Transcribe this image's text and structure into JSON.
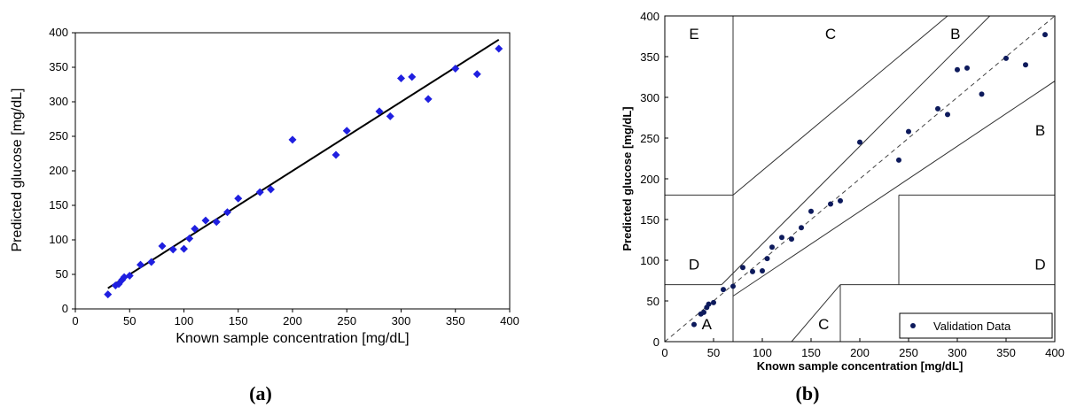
{
  "chart_data": [
    {
      "type": "scatter",
      "panel_label": "(a)",
      "xlabel": "Known sample concentration [mg/dL]",
      "ylabel": "Predicted glucose [mg/dL]",
      "xlim": [
        0,
        400
      ],
      "ylim": [
        0,
        400
      ],
      "xticks": [
        "0",
        "50",
        "100",
        "150",
        "200",
        "250",
        "300",
        "350",
        "400"
      ],
      "yticks": [
        "0",
        "50",
        "100",
        "150",
        "200",
        "250",
        "300",
        "350",
        "400"
      ],
      "marker": "diamond",
      "marker_color": "#1f1fe0",
      "fit_line": {
        "x": [
          30,
          390
        ],
        "y": [
          30,
          390
        ],
        "color": "#000000"
      },
      "points": [
        {
          "x": 30,
          "y": 21
        },
        {
          "x": 37,
          "y": 34
        },
        {
          "x": 40,
          "y": 36
        },
        {
          "x": 43,
          "y": 42
        },
        {
          "x": 45,
          "y": 46
        },
        {
          "x": 50,
          "y": 48
        },
        {
          "x": 60,
          "y": 64
        },
        {
          "x": 70,
          "y": 68
        },
        {
          "x": 80,
          "y": 91
        },
        {
          "x": 90,
          "y": 86
        },
        {
          "x": 100,
          "y": 87
        },
        {
          "x": 105,
          "y": 102
        },
        {
          "x": 110,
          "y": 116
        },
        {
          "x": 120,
          "y": 128
        },
        {
          "x": 130,
          "y": 126
        },
        {
          "x": 140,
          "y": 140
        },
        {
          "x": 150,
          "y": 160
        },
        {
          "x": 170,
          "y": 169
        },
        {
          "x": 180,
          "y": 173
        },
        {
          "x": 200,
          "y": 245
        },
        {
          "x": 240,
          "y": 223
        },
        {
          "x": 250,
          "y": 258
        },
        {
          "x": 280,
          "y": 286
        },
        {
          "x": 290,
          "y": 279
        },
        {
          "x": 300,
          "y": 334
        },
        {
          "x": 310,
          "y": 336
        },
        {
          "x": 325,
          "y": 304
        },
        {
          "x": 350,
          "y": 348
        },
        {
          "x": 370,
          "y": 340
        },
        {
          "x": 390,
          "y": 377
        }
      ]
    },
    {
      "type": "scatter",
      "panel_label": "(b)",
      "xlabel": "Known sample concentration [mg/dL]",
      "ylabel": "Predicted glucose [mg/dL]",
      "xlim": [
        0,
        400
      ],
      "ylim": [
        0,
        400
      ],
      "xticks": [
        "0",
        "50",
        "100",
        "150",
        "200",
        "250",
        "300",
        "350",
        "400"
      ],
      "yticks": [
        "0",
        "50",
        "100",
        "150",
        "200",
        "250",
        "300",
        "350",
        "400"
      ],
      "marker": "dot",
      "marker_color": "#0d1a5c",
      "legend": {
        "label": "Validation Data",
        "placement": "bottom-right"
      },
      "identity_line": {
        "x": [
          0,
          400
        ],
        "y": [
          0,
          400
        ],
        "style": "dashed"
      },
      "zones": [
        {
          "label": "A",
          "x": 43,
          "y": 22
        },
        {
          "label": "B",
          "x": 298,
          "y": 378
        },
        {
          "label": "B",
          "x": 385,
          "y": 260
        },
        {
          "label": "C",
          "x": 170,
          "y": 378
        },
        {
          "label": "C",
          "x": 163,
          "y": 22
        },
        {
          "label": "D",
          "x": 30,
          "y": 95
        },
        {
          "label": "D",
          "x": 385,
          "y": 95
        },
        {
          "label": "E",
          "x": 30,
          "y": 378
        }
      ],
      "zone_lines": [
        {
          "x1": 70,
          "y1": 0,
          "x2": 70,
          "y2": 400
        },
        {
          "x1": 0,
          "y1": 70,
          "x2": 58.33,
          "y2": 70
        },
        {
          "x1": 58.33,
          "y1": 70,
          "x2": 400,
          "y2": 480
        },
        {
          "x1": 70,
          "y1": 56,
          "x2": 400,
          "y2": 320
        },
        {
          "x1": 0,
          "y1": 180,
          "x2": 70,
          "y2": 180
        },
        {
          "x1": 70,
          "y1": 180,
          "x2": 290,
          "y2": 400
        },
        {
          "x1": 180,
          "y1": 0,
          "x2": 180,
          "y2": 70
        },
        {
          "x1": 180,
          "y1": 70,
          "x2": 400,
          "y2": 70
        },
        {
          "x1": 240,
          "y1": 70,
          "x2": 240,
          "y2": 180
        },
        {
          "x1": 240,
          "y1": 180,
          "x2": 400,
          "y2": 180
        },
        {
          "x1": 130,
          "y1": 0,
          "x2": 180,
          "y2": 70
        }
      ],
      "points": [
        {
          "x": 30,
          "y": 21
        },
        {
          "x": 37,
          "y": 34
        },
        {
          "x": 40,
          "y": 36
        },
        {
          "x": 43,
          "y": 42
        },
        {
          "x": 45,
          "y": 46
        },
        {
          "x": 50,
          "y": 48
        },
        {
          "x": 60,
          "y": 64
        },
        {
          "x": 70,
          "y": 68
        },
        {
          "x": 80,
          "y": 91
        },
        {
          "x": 90,
          "y": 86
        },
        {
          "x": 100,
          "y": 87
        },
        {
          "x": 105,
          "y": 102
        },
        {
          "x": 110,
          "y": 116
        },
        {
          "x": 120,
          "y": 128
        },
        {
          "x": 130,
          "y": 126
        },
        {
          "x": 140,
          "y": 140
        },
        {
          "x": 150,
          "y": 160
        },
        {
          "x": 170,
          "y": 169
        },
        {
          "x": 180,
          "y": 173
        },
        {
          "x": 200,
          "y": 245
        },
        {
          "x": 240,
          "y": 223
        },
        {
          "x": 250,
          "y": 258
        },
        {
          "x": 280,
          "y": 286
        },
        {
          "x": 290,
          "y": 279
        },
        {
          "x": 300,
          "y": 334
        },
        {
          "x": 310,
          "y": 336
        },
        {
          "x": 325,
          "y": 304
        },
        {
          "x": 350,
          "y": 348
        },
        {
          "x": 370,
          "y": 340
        },
        {
          "x": 390,
          "y": 377
        }
      ]
    }
  ]
}
